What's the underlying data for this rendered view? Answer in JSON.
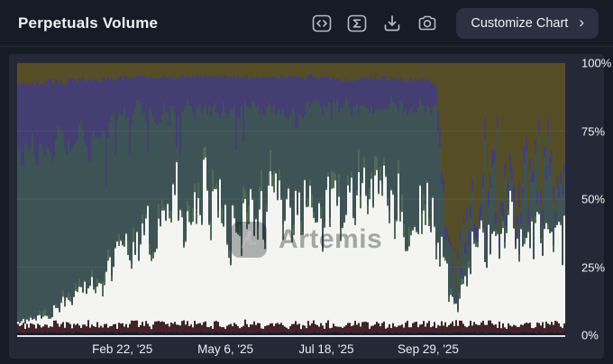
{
  "header": {
    "title": "Perpetuals Volume",
    "toolbar_icons": [
      "code-icon",
      "sigma-icon",
      "download-icon",
      "camera-icon"
    ],
    "customize_button": {
      "label": "Customize Chart",
      "chevron": "›"
    }
  },
  "chart": {
    "watermark": "Artemis",
    "y_axis_labels": [
      "100%",
      "75%",
      "50%",
      "25%",
      "0%"
    ]
  },
  "chart_data": {
    "type": "area",
    "stacked": true,
    "normalized_percent": true,
    "title": "Perpetuals Volume",
    "ylim": [
      0,
      100
    ],
    "grid": "horizontal, faint, at 25/50/75",
    "legend": "none visible; series identified by fill color",
    "y_ticks": [
      {
        "label": "100%",
        "value": 100
      },
      {
        "label": "75%",
        "value": 75
      },
      {
        "label": "50%",
        "value": 50
      },
      {
        "label": "25%",
        "value": 25
      },
      {
        "label": "0%",
        "value": 0
      }
    ],
    "x_ticks": [
      {
        "label": "Feb 22, '25",
        "t": 0.192
      },
      {
        "label": "May 6, '25",
        "t": 0.38
      },
      {
        "label": "Jul 18, '25",
        "t": 0.564
      },
      {
        "label": "Sep 29, '25",
        "t": 0.75
      }
    ],
    "keyframe_t": [
      0,
      0.05,
      0.1,
      0.15,
      0.2,
      0.25,
      0.3,
      0.35,
      0.4,
      0.45,
      0.5,
      0.55,
      0.6,
      0.65,
      0.7,
      0.74,
      0.765,
      0.775,
      0.79,
      0.805,
      0.82,
      0.85,
      0.9,
      0.95,
      1
    ],
    "stack_order_bottom_to_top": [
      "navy",
      "maroon",
      "white",
      "green",
      "teal",
      "purple",
      "olive"
    ],
    "series": [
      {
        "name": "navy",
        "color": "#141d28",
        "values": [
          1,
          1,
          1,
          1,
          1,
          1,
          1,
          1,
          1,
          1,
          1,
          1,
          1,
          1,
          1,
          1,
          1,
          1,
          1,
          1,
          1,
          1,
          1,
          1,
          1
        ]
      },
      {
        "name": "maroon",
        "color": "#44222a",
        "values": [
          3,
          3,
          3,
          3,
          3,
          3,
          3,
          3,
          3,
          3,
          3,
          3,
          3,
          3,
          3,
          3,
          3,
          3,
          3,
          3,
          3,
          3,
          3,
          3,
          3
        ]
      },
      {
        "name": "white",
        "color": "#f4f5f3",
        "values": [
          1,
          3,
          9,
          17,
          24,
          30,
          35,
          45,
          37,
          35,
          39,
          38,
          42,
          39,
          43,
          39,
          39,
          26,
          10,
          7,
          20,
          28,
          31,
          33,
          34
        ]
      },
      {
        "name": "green",
        "color": "#4f6b55",
        "values": [
          0,
          1,
          1,
          2,
          2,
          2,
          3,
          3,
          3,
          3,
          3,
          3,
          3,
          3,
          3,
          3,
          3,
          2,
          1,
          1,
          1,
          1,
          1,
          1,
          1
        ]
      },
      {
        "name": "teal",
        "color": "#3d5356",
        "values": [
          61,
          62,
          60,
          54,
          50,
          46,
          41,
          31,
          39,
          41,
          37,
          39,
          35,
          39,
          34,
          38,
          37,
          28,
          8,
          6,
          16,
          20,
          20,
          17,
          20
        ]
      },
      {
        "name": "purple",
        "color": "#443e72",
        "values": [
          26,
          23,
          20,
          17,
          15,
          13,
          12,
          12,
          12,
          12,
          12,
          11,
          11,
          10,
          10,
          10,
          9,
          5,
          2,
          2,
          4,
          5,
          6,
          5,
          5
        ]
      },
      {
        "name": "olive",
        "color": "#554d26",
        "values": [
          8,
          7,
          6,
          6,
          5,
          5,
          5,
          5,
          5,
          5,
          5,
          5,
          6,
          5,
          6,
          6,
          8,
          35,
          75,
          80,
          55,
          42,
          38,
          40,
          36
        ]
      }
    ],
    "note": "Percent-share keyframes estimated from pixels; t is fraction of x-axis width. Daily jagged texture reproduced with seeded noise."
  },
  "colors": {
    "page_bg": "#171b26",
    "card_bg": "#252937",
    "button_bg": "#2c3040",
    "icon_stroke": "#b7bbc8",
    "axis_text": "#f0f2f6",
    "baseline": "#dde1e8",
    "gridline": "rgba(255,255,255,0.07)"
  }
}
